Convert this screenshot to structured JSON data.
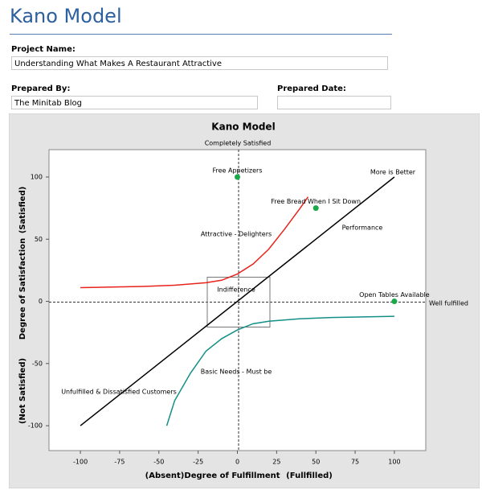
{
  "header": {
    "title": "Kano Model"
  },
  "form": {
    "project_name_label": "Project Name:",
    "project_name": "Understanding What Makes A Restaurant Attractive",
    "prepared_by_label": "Prepared By:",
    "prepared_by": "The Minitab Blog",
    "prepared_date_label": "Prepared Date:"
  },
  "chart_data": {
    "type": "line",
    "title": "Kano Model",
    "x_label": "Degree of Fulfillment",
    "x_label_left": "(Absent)",
    "x_label_right": "(Fullfilled)",
    "y_label": "Degree of Satisfaction",
    "y_label_top": "(Satisfied)",
    "y_label_bottom": "(Not Satisfied)",
    "annotations": [
      "Completely Satisfied",
      "Well fulfilled",
      "More is Better",
      "Performance",
      "Attractive - Delighters",
      "Indifference",
      "Basic Needs - Must be",
      "Unfulfilled & Dissatisfied Customers"
    ],
    "xlim": [
      -120,
      120
    ],
    "ylim": [
      -120,
      122
    ],
    "xticks": [
      -100,
      -75,
      -50,
      -25,
      0,
      25,
      50,
      75,
      100
    ],
    "yticks": [
      -100,
      -50,
      0,
      50,
      100
    ],
    "series": [
      {
        "color": "#e8231c",
        "x": [
          -100,
          -80,
          -60,
          -40,
          -20,
          -10,
          0,
          10,
          20,
          30,
          40,
          45
        ],
        "values": [
          11,
          11.5,
          12,
          13,
          15,
          17,
          22,
          30,
          42,
          58,
          75,
          84
        ]
      },
      {
        "color": "#138f86",
        "x": [
          -45,
          -40,
          -30,
          -20,
          -10,
          0,
          10,
          20,
          40,
          60,
          80,
          100
        ],
        "values": [
          -100,
          -80,
          -58,
          -40,
          -30,
          -23,
          -18,
          -16,
          -14,
          -13,
          -12.5,
          -12
        ]
      },
      {
        "color": "#000000",
        "x": [
          -100,
          100
        ],
        "values": [
          -100,
          100
        ]
      }
    ],
    "points": {
      "color": "#1ba84a",
      "x": [
        0,
        50,
        100
      ],
      "values": [
        100,
        75,
        0
      ],
      "labels": [
        "Free Appetizers",
        "Free Bread When I Sit Down",
        "Open Tables Available"
      ]
    }
  }
}
